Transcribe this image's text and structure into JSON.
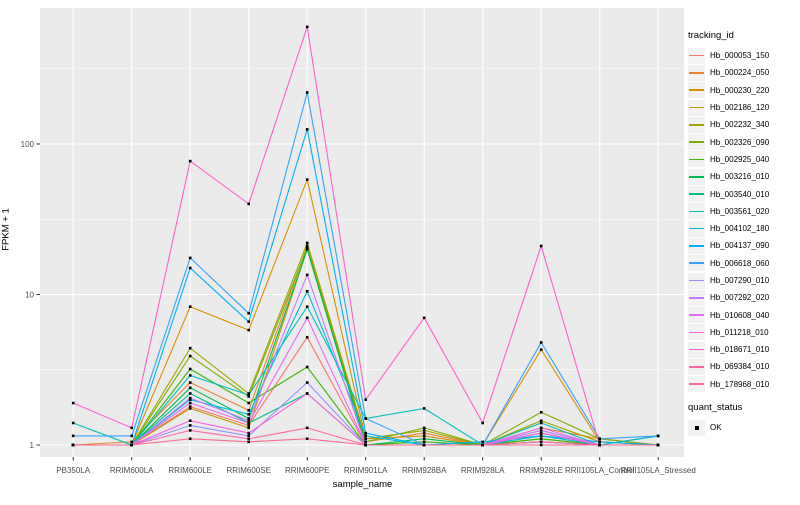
{
  "chart_data": {
    "type": "line",
    "title": "",
    "xlabel": "sample_name",
    "ylabel": "FPKM + 1",
    "y_scale": "log10",
    "y_ticks": [
      1,
      10,
      100
    ],
    "y_minor_ticks": [
      3.162,
      31.62,
      316.2
    ],
    "ylim": [
      0.83,
      950
    ],
    "grid": "on",
    "legend_position": "right",
    "point_shape": "square",
    "categories": [
      "PB350LA",
      "RRIM600LA",
      "RRIM600LE",
      "RRIM600SE",
      "RRIM600PE",
      "RRIM901LA",
      "RRIM928BA",
      "RRIM928LA",
      "RRIM928LE",
      "RRII105LA_Control",
      "RRII105LA_Stressed"
    ],
    "series": [
      {
        "name": "Hb_000053_150",
        "color": "#F8766D",
        "values": [
          1.0,
          1.0,
          1.8,
          1.35,
          5.2,
          1.0,
          1.0,
          1.0,
          1.05,
          1.0,
          1.0
        ]
      },
      {
        "name": "Hb_000224_050",
        "color": "#EA8331",
        "values": [
          1.0,
          1.05,
          2.6,
          1.7,
          21,
          1.05,
          1.2,
          1.0,
          1.3,
          1.1,
          1.0
        ]
      },
      {
        "name": "Hb_000230_220",
        "color": "#D89000",
        "values": [
          1.0,
          1.0,
          8.3,
          5.8,
          58,
          1.1,
          1.15,
          1.0,
          4.3,
          1.05,
          1.0
        ]
      },
      {
        "name": "Hb_002186_120",
        "color": "#C09B00",
        "values": [
          1.0,
          1.0,
          1.75,
          1.3,
          20,
          1.0,
          1.0,
          1.0,
          1.1,
          1.0,
          1.0
        ]
      },
      {
        "name": "Hb_002232_340",
        "color": "#A3A500",
        "values": [
          1.0,
          1.0,
          4.4,
          2.2,
          22,
          1.1,
          1.25,
          1.0,
          1.45,
          1.05,
          1.0
        ]
      },
      {
        "name": "Hb_002326_090",
        "color": "#7CAE00",
        "values": [
          1.0,
          1.0,
          3.9,
          2.1,
          20.5,
          1.05,
          1.3,
          1.0,
          1.65,
          1.1,
          1.0
        ]
      },
      {
        "name": "Hb_002925_040",
        "color": "#39B600",
        "values": [
          1.0,
          1.0,
          3.2,
          1.9,
          3.3,
          1.0,
          1.05,
          1.0,
          1.1,
          1.0,
          1.15
        ]
      },
      {
        "name": "Hb_003216_010",
        "color": "#00BB4E",
        "values": [
          1.0,
          1.0,
          2.4,
          1.5,
          20,
          1.0,
          1.1,
          1.0,
          1.2,
          1.0,
          1.0
        ]
      },
      {
        "name": "Hb_003540_010",
        "color": "#00C087",
        "values": [
          1.0,
          1.0,
          2.2,
          1.4,
          2.2,
          1.0,
          1.0,
          1.0,
          1.05,
          1.0,
          1.0
        ]
      },
      {
        "name": "Hb_003561_020",
        "color": "#00C0B8",
        "values": [
          1.4,
          1.0,
          2.9,
          2.15,
          8.3,
          1.5,
          1.75,
          1.0,
          1.4,
          1.0,
          1.0
        ]
      },
      {
        "name": "Hb_004102_180",
        "color": "#00BCD8",
        "values": [
          1.0,
          1.0,
          2.0,
          1.6,
          10.5,
          1.15,
          1.0,
          1.0,
          1.15,
          1.0,
          1.15
        ]
      },
      {
        "name": "Hb_004137_090",
        "color": "#00B0F6",
        "values": [
          1.0,
          1.0,
          15,
          6.6,
          125,
          1.2,
          1.0,
          1.05,
          1.15,
          1.05,
          1.0
        ]
      },
      {
        "name": "Hb_006618_060",
        "color": "#35A2FF",
        "values": [
          1.15,
          1.15,
          17.5,
          7.5,
          220,
          1.5,
          1.0,
          1.0,
          4.8,
          1.1,
          1.15
        ]
      },
      {
        "name": "Hb_007290_010",
        "color": "#9590FF",
        "values": [
          1.0,
          1.0,
          1.35,
          1.15,
          2.6,
          1.0,
          1.0,
          1.0,
          1.25,
          1.0,
          1.0
        ]
      },
      {
        "name": "Hb_007292_020",
        "color": "#C77CFF",
        "values": [
          1.0,
          1.0,
          2.05,
          1.45,
          13.5,
          1.0,
          1.0,
          1.0,
          1.25,
          1.0,
          1.0
        ]
      },
      {
        "name": "Hb_010608_040",
        "color": "#E76BF3",
        "values": [
          1.0,
          1.0,
          1.9,
          1.4,
          7.0,
          1.0,
          1.0,
          1.0,
          1.3,
          1.0,
          1.0
        ]
      },
      {
        "name": "Hb_011218_010",
        "color": "#FA62DB",
        "values": [
          1.0,
          1.0,
          1.45,
          1.2,
          2.2,
          1.0,
          1.0,
          1.0,
          1.2,
          1.0,
          1.0
        ]
      },
      {
        "name": "Hb_018671_010",
        "color": "#FF61CC",
        "values": [
          1.9,
          1.3,
          77,
          40,
          600,
          2.0,
          7.0,
          1.4,
          21,
          1.0,
          1.0
        ]
      },
      {
        "name": "Hb_069384_010",
        "color": "#FF67A4",
        "values": [
          1.0,
          1.0,
          1.25,
          1.1,
          1.3,
          1.0,
          1.0,
          1.0,
          1.05,
          1.0,
          1.0
        ]
      },
      {
        "name": "Hb_178968_010",
        "color": "#FF6C90",
        "values": [
          1.0,
          1.0,
          1.1,
          1.05,
          1.1,
          1.0,
          1.0,
          1.0,
          1.0,
          1.0,
          1.0
        ]
      }
    ]
  },
  "legend": {
    "tracking_title": "tracking_id",
    "quant_title": "quant_status",
    "quant_items": [
      {
        "label": "OK"
      }
    ]
  },
  "colors": {
    "panel_bg": "#EBEBEB",
    "grid": "#FFFFFF",
    "axis_text": "#4D4D4D",
    "tick_mark": "#333333",
    "text": "#000000",
    "legend_key_bg": "#F2F2F2",
    "point": "#000000"
  }
}
